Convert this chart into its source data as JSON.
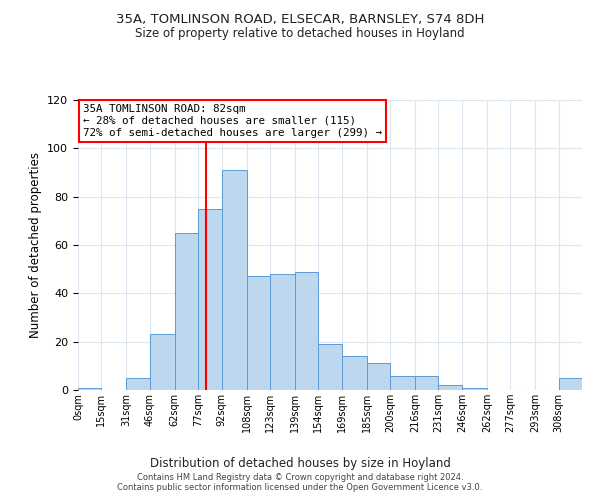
{
  "title1": "35A, TOMLINSON ROAD, ELSECAR, BARNSLEY, S74 8DH",
  "title2": "Size of property relative to detached houses in Hoyland",
  "xlabel": "Distribution of detached houses by size in Hoyland",
  "ylabel": "Number of detached properties",
  "bin_edges": [
    0,
    15,
    31,
    46,
    62,
    77,
    92,
    108,
    123,
    139,
    154,
    169,
    185,
    200,
    216,
    231,
    246,
    262,
    277,
    293,
    308,
    323
  ],
  "bar_heights": [
    1,
    0,
    5,
    23,
    65,
    75,
    91,
    47,
    48,
    49,
    19,
    14,
    11,
    6,
    6,
    2,
    1,
    0,
    0,
    0,
    5
  ],
  "bar_color": "#bdd7ee",
  "bar_edge_color": "#5b9bd5",
  "red_line_x": 82,
  "ylim": [
    0,
    120
  ],
  "yticks": [
    0,
    20,
    40,
    60,
    80,
    100,
    120
  ],
  "xtick_labels": [
    "0sqm",
    "15sqm",
    "31sqm",
    "46sqm",
    "62sqm",
    "77sqm",
    "92sqm",
    "108sqm",
    "123sqm",
    "139sqm",
    "154sqm",
    "169sqm",
    "185sqm",
    "200sqm",
    "216sqm",
    "231sqm",
    "246sqm",
    "262sqm",
    "277sqm",
    "293sqm",
    "308sqm"
  ],
  "annotation_title": "35A TOMLINSON ROAD: 82sqm",
  "annotation_line1": "← 28% of detached houses are smaller (115)",
  "annotation_line2": "72% of semi-detached houses are larger (299) →",
  "footer1": "Contains HM Land Registry data © Crown copyright and database right 2024.",
  "footer2": "Contains public sector information licensed under the Open Government Licence v3.0.",
  "bg_color": "#ffffff",
  "grid_color": "#dce6f1"
}
